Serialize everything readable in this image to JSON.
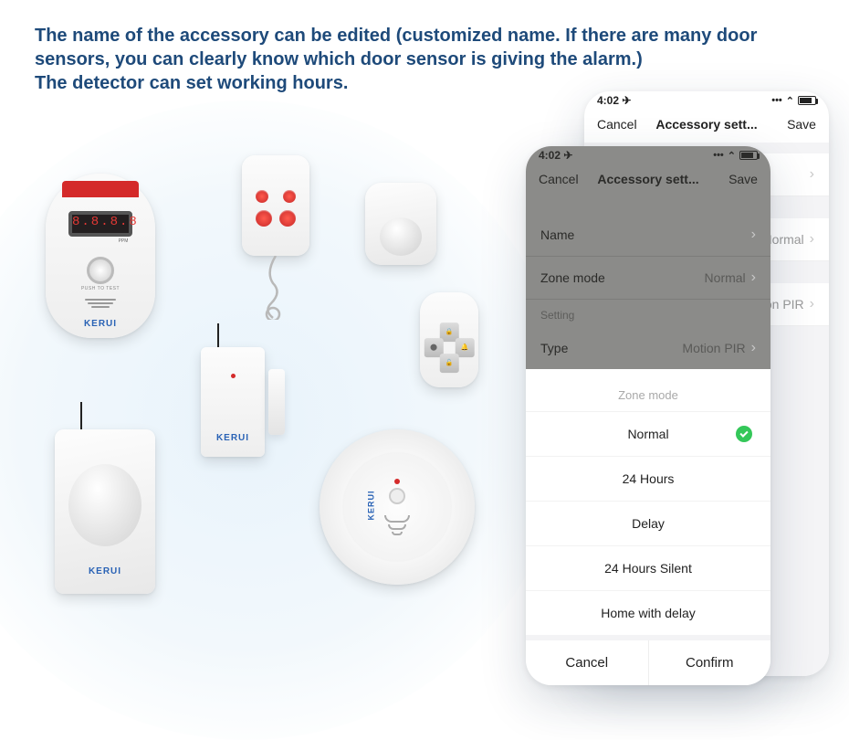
{
  "hero": {
    "line1": "The name of the accessory can be edited (customized name. If there are many door sensors, you can clearly know which door sensor is giving the alarm.)",
    "line2": "The detector can set working hours."
  },
  "brand": "KERUI",
  "gasDigits": "8.8.8.8",
  "pushLabel": "PUSH TO TEST",
  "statusTime": "4:02",
  "backPhone": {
    "cancel": "Cancel",
    "title": "Accessory sett...",
    "save": "Save",
    "nameValue": "",
    "zoneValue": "Normal",
    "typeValue": "Motion PIR"
  },
  "frontPhone": {
    "cancel": "Cancel",
    "title": "Accessory sett...",
    "save": "Save",
    "rows": {
      "name": "Name",
      "zoneMode": "Zone mode",
      "zoneValue": "Normal",
      "settingLabel": "Setting",
      "type": "Type",
      "typeValue": "Motion PIR"
    }
  },
  "sheet": {
    "title": "Zone mode",
    "options": [
      "Normal",
      "24 Hours",
      "Delay",
      "24 Hours Silent",
      "Home with delay"
    ],
    "selectedIndex": 0,
    "cancel": "Cancel",
    "confirm": "Confirm"
  }
}
